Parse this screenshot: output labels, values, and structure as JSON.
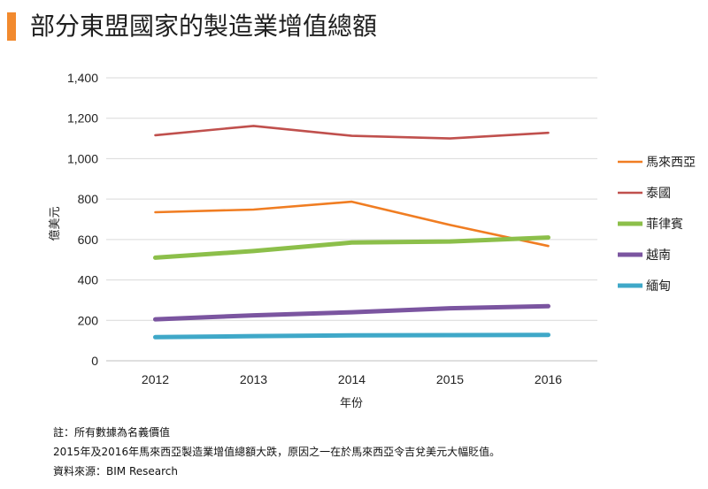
{
  "header": {
    "title": "部分東盟國家的製造業增值總額",
    "accent_color": "#F28A2E"
  },
  "chart_data": {
    "type": "line",
    "title": "部分東盟國家的製造業增值總額",
    "xlabel": "年份",
    "ylabel": "億美元",
    "x": [
      "2012",
      "2013",
      "2014",
      "2015",
      "2016"
    ],
    "ylim": [
      0,
      1400
    ],
    "yticks": [
      0,
      200,
      400,
      600,
      800,
      1000,
      1200,
      1400
    ],
    "ytick_labels": [
      "0",
      "200",
      "400",
      "600",
      "800",
      "1,000",
      "1,200",
      "1,400"
    ],
    "grid": true,
    "legend_position": "right",
    "series": [
      {
        "name": "馬來西亞",
        "color": "#F07D22",
        "values": [
          735,
          748,
          787,
          672,
          568
        ]
      },
      {
        "name": "泰國",
        "color": "#C0504D",
        "values": [
          1116,
          1162,
          1113,
          1100,
          1128
        ]
      },
      {
        "name": "菲律賓",
        "color": "#8CBF4A",
        "values": [
          510,
          543,
          585,
          590,
          610
        ]
      },
      {
        "name": "越南",
        "color": "#7B55A0",
        "values": [
          205,
          225,
          240,
          260,
          270
        ]
      },
      {
        "name": "緬甸",
        "color": "#3FA8C8",
        "values": [
          117,
          122,
          126,
          127,
          128
        ]
      }
    ]
  },
  "notes": {
    "note1": "註：所有數據為名義價值",
    "note2": "2015年及2016年馬來西亞製造業增值總額大跌，原因之一在於馬來西亞令吉兌美元大幅貶值。",
    "source": "資料來源：BIM Research"
  }
}
